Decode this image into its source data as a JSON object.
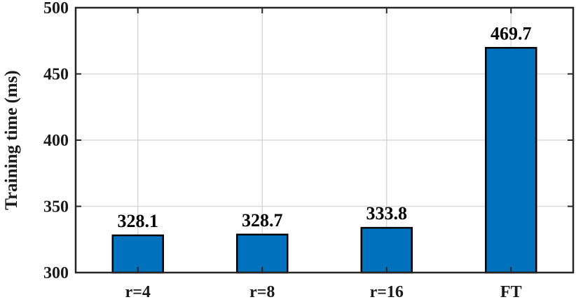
{
  "chart_data": {
    "type": "bar",
    "title": "",
    "xlabel": "",
    "ylabel": "Training time (ms)",
    "categories": [
      "r=4",
      "r=8",
      "r=16",
      "FT"
    ],
    "values": [
      328.1,
      328.7,
      333.8,
      469.7
    ],
    "value_labels": [
      "328.1",
      "328.7",
      "333.8",
      "469.7"
    ],
    "ylim": [
      300,
      500
    ],
    "yticks": [
      300,
      350,
      400,
      450,
      500
    ],
    "ytick_labels": [
      "300",
      "350",
      "400",
      "450",
      "500"
    ],
    "grid": true,
    "bar_color": "#0072BD",
    "bar_edge_color": "#000000",
    "grid_color": "#d9d9d9",
    "axis_color": "#262626"
  }
}
